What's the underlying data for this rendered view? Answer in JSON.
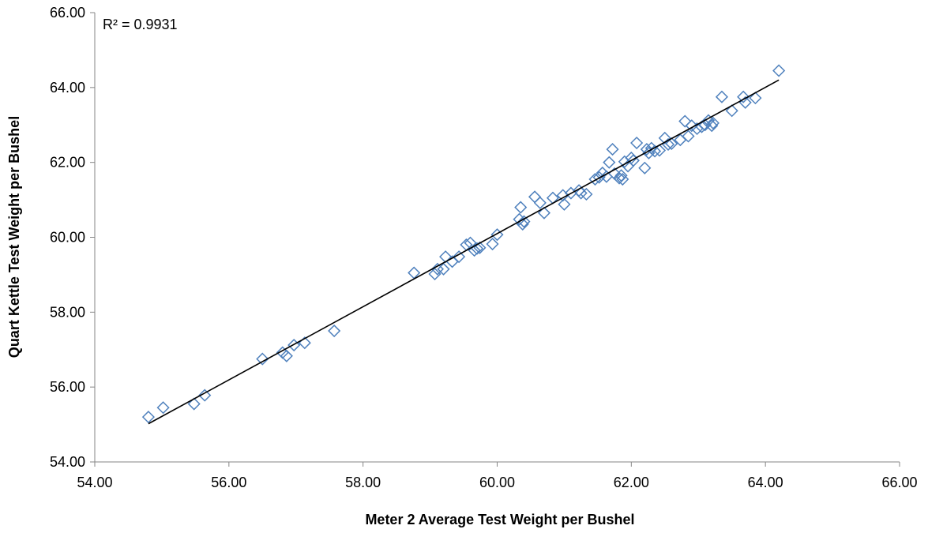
{
  "chart_data": {
    "type": "scatter",
    "xlabel": "Meter 2 Average Test Weight per Bushel",
    "ylabel": "Quart Kettle Test Weight per Bushel",
    "xlim": [
      54,
      66
    ],
    "ylim": [
      54,
      66
    ],
    "x_ticks": [
      "54.00",
      "56.00",
      "58.00",
      "60.00",
      "62.00",
      "64.00",
      "66.00"
    ],
    "y_ticks": [
      "54.00",
      "56.00",
      "58.00",
      "60.00",
      "62.00",
      "64.00",
      "66.00"
    ],
    "grid": false,
    "marker": "diamond",
    "marker_color": "#4F81BD",
    "trendline_color": "#000000",
    "annotation": "R² = 0.9931",
    "trendline": {
      "x": [
        54.8,
        64.2
      ],
      "y": [
        55.02,
        64.2
      ]
    },
    "series": [
      {
        "x": [
          54.8,
          55.02,
          55.48,
          55.64,
          56.5,
          56.8,
          56.86,
          56.97,
          57.13,
          57.57,
          58.76,
          59.07,
          59.11,
          59.2,
          59.23,
          59.33,
          59.43,
          59.54,
          59.6,
          59.66,
          59.7,
          59.74,
          59.93,
          60.0,
          60.33,
          60.35,
          60.38,
          60.4,
          60.56,
          60.64,
          60.7,
          60.83,
          60.98,
          61.0,
          61.1,
          61.22,
          61.25,
          61.33,
          61.46,
          61.52,
          61.57,
          61.63,
          61.67,
          61.72,
          61.75,
          61.82,
          61.85,
          61.87,
          61.9,
          61.95,
          62.0,
          62.03,
          62.08,
          62.2,
          62.23,
          62.26,
          62.3,
          62.35,
          62.42,
          62.5,
          62.55,
          62.6,
          62.73,
          62.8,
          62.85,
          62.9,
          62.98,
          63.05,
          63.1,
          63.15,
          63.2,
          63.22,
          63.35,
          63.5,
          63.67,
          63.7,
          63.85,
          64.2
        ],
        "y": [
          55.2,
          55.45,
          55.55,
          55.78,
          56.75,
          56.92,
          56.83,
          57.12,
          57.18,
          57.5,
          59.05,
          59.02,
          59.15,
          59.15,
          59.48,
          59.35,
          59.48,
          59.8,
          59.85,
          59.65,
          59.7,
          59.72,
          59.82,
          60.07,
          60.48,
          60.8,
          60.35,
          60.42,
          61.08,
          60.92,
          60.65,
          61.05,
          61.12,
          60.88,
          61.18,
          61.25,
          61.18,
          61.15,
          61.55,
          61.6,
          61.72,
          61.62,
          62.0,
          62.35,
          61.7,
          61.58,
          61.65,
          61.55,
          62.02,
          61.9,
          62.12,
          62.05,
          62.52,
          61.85,
          62.35,
          62.25,
          62.38,
          62.3,
          62.32,
          62.65,
          62.48,
          62.5,
          62.6,
          63.1,
          62.7,
          62.98,
          62.9,
          62.95,
          63.0,
          63.12,
          62.98,
          63.05,
          63.75,
          63.38,
          63.75,
          63.6,
          63.72,
          64.45
        ]
      }
    ]
  }
}
